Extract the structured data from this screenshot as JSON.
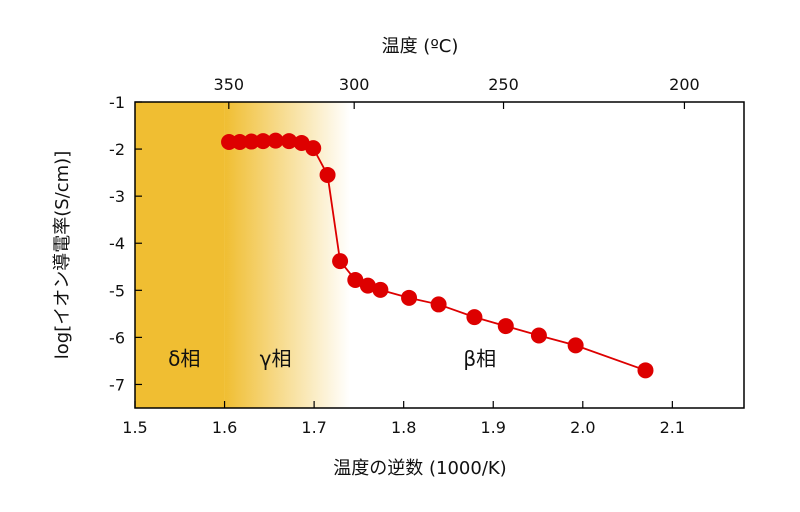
{
  "chart_data": {
    "type": "scatter",
    "xlabel": "温度の逆数 (1000/K)",
    "ylabel": "log[イオン導電率(S/cm)]",
    "top_xlabel": "温度 (ºC)",
    "xlim": [
      1.5,
      2.18
    ],
    "ylim": [
      -7.5,
      -1
    ],
    "x_ticks": [
      1.5,
      1.6,
      1.7,
      1.8,
      1.9,
      2.0,
      2.1
    ],
    "x_tick_labels": [
      "1.5",
      "1.6",
      "1.7",
      "1.8",
      "1.9",
      "2.0",
      "2.1"
    ],
    "y_ticks": [
      -1,
      -2,
      -3,
      -4,
      -5,
      -6,
      -7
    ],
    "y_tick_labels": [
      "-1",
      "-2",
      "-3",
      "-4",
      "-5",
      "-6",
      "-7"
    ],
    "top_ticks_celsius": [
      350,
      300,
      250,
      200
    ],
    "top_tick_labels": [
      "350",
      "300",
      "250",
      "200"
    ],
    "series": [
      {
        "color": "#dd0000",
        "x": [
          1.605,
          1.617,
          1.63,
          1.643,
          1.657,
          1.672,
          1.686,
          1.699,
          1.715,
          1.729,
          1.746,
          1.76,
          1.774,
          1.806,
          1.839,
          1.879,
          1.914,
          1.951,
          1.992,
          2.07
        ],
        "y": [
          -1.85,
          -1.85,
          -1.84,
          -1.83,
          -1.82,
          -1.83,
          -1.87,
          -1.98,
          -2.55,
          -4.38,
          -4.78,
          -4.9,
          -4.99,
          -5.16,
          -5.3,
          -5.57,
          -5.76,
          -5.96,
          -6.17,
          -6.7
        ]
      }
    ],
    "phase_regions": [
      {
        "label": "δ相",
        "x_start": 1.5,
        "x_end": 1.6,
        "color": "#f0be32"
      },
      {
        "label": "γ相",
        "x_start": 1.6,
        "x_end": 1.74,
        "color_from": "#f0be32",
        "color_to": "#ffffff"
      },
      {
        "label": "β相",
        "x_start": 1.74,
        "x_end": 2.18,
        "color": "#ffffff"
      }
    ],
    "grid": false,
    "legend": "none"
  }
}
